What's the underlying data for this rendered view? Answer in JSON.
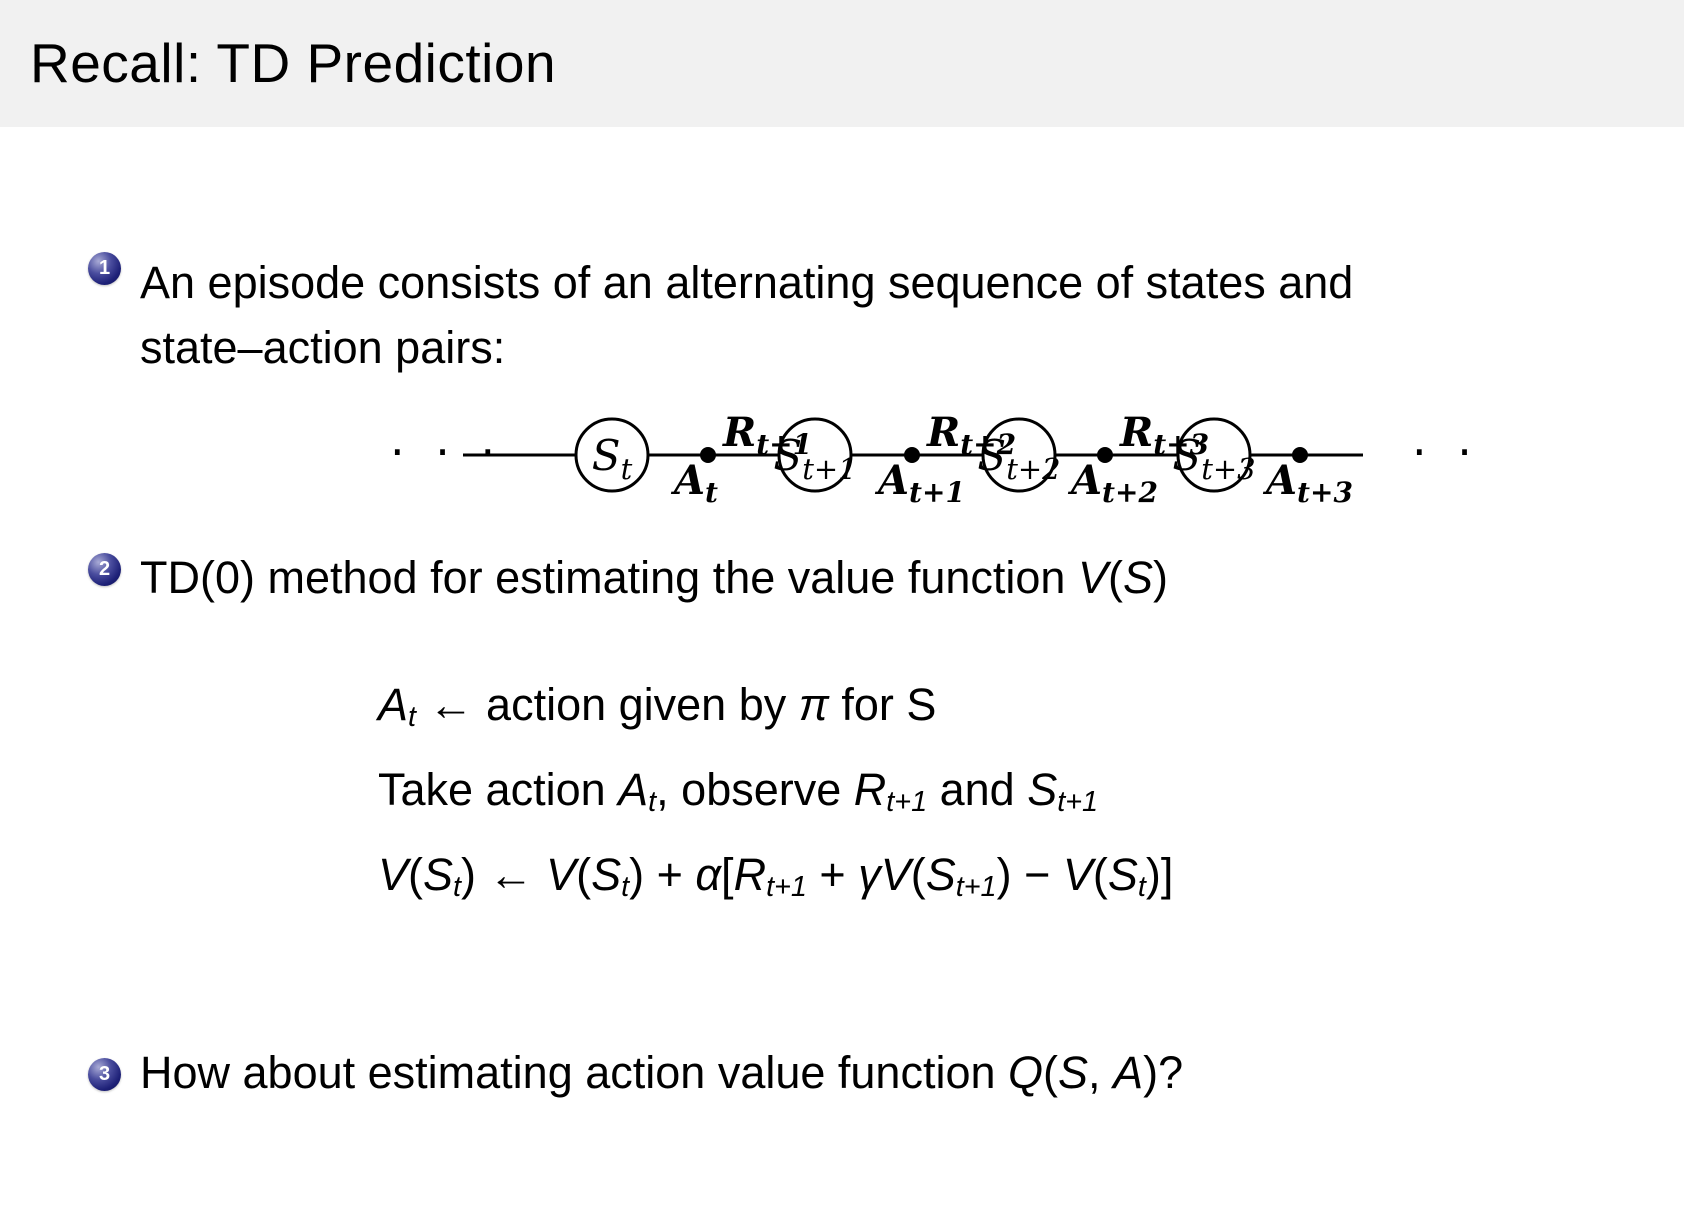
{
  "slide": {
    "title": "Recall: TD Prediction"
  },
  "items": [
    {
      "number": "1",
      "lines": [
        [
          {
            "t": "An episode consists of an alternating sequence of states and"
          }
        ],
        [
          {
            "t": "state–action pairs:"
          }
        ]
      ]
    },
    {
      "number": "2",
      "lines": [
        [
          {
            "t": "TD(0) method for estimating the value function "
          },
          {
            "t": "V",
            "i": 1
          },
          {
            "t": "("
          },
          {
            "t": "S",
            "i": 1
          },
          {
            "t": ")"
          }
        ]
      ]
    },
    {
      "number": "3",
      "lines": [
        [
          {
            "t": "How about estimating action value function "
          },
          {
            "t": "Q",
            "i": 1
          },
          {
            "t": "("
          },
          {
            "t": "S",
            "i": 1
          },
          {
            "t": ", "
          },
          {
            "t": "A",
            "i": 1
          },
          {
            "t": ")?"
          }
        ]
      ]
    }
  ],
  "algorithm": {
    "lines": [
      [
        {
          "t": "A",
          "i": 1
        },
        {
          "t": "t",
          "i": 1,
          "sub": 1
        },
        {
          "t": " ← action given by "
        },
        {
          "t": "π",
          "i": 1
        },
        {
          "t": " for S"
        }
      ],
      [
        {
          "t": "Take action "
        },
        {
          "t": "A",
          "i": 1
        },
        {
          "t": "t",
          "i": 1,
          "sub": 1
        },
        {
          "t": ", observe "
        },
        {
          "t": "R",
          "i": 1
        },
        {
          "t": "t+1",
          "i": 1,
          "sub": 1
        },
        {
          "t": " and "
        },
        {
          "t": "S",
          "i": 1
        },
        {
          "t": "t+1",
          "i": 1,
          "sub": 1
        }
      ],
      [
        {
          "t": "V",
          "i": 1
        },
        {
          "t": "("
        },
        {
          "t": "S",
          "i": 1
        },
        {
          "t": "t",
          "i": 1,
          "sub": 1
        },
        {
          "t": ") ← "
        },
        {
          "t": "V",
          "i": 1
        },
        {
          "t": "("
        },
        {
          "t": "S",
          "i": 1
        },
        {
          "t": "t",
          "i": 1,
          "sub": 1
        },
        {
          "t": ") + "
        },
        {
          "t": "α",
          "i": 1
        },
        {
          "t": "["
        },
        {
          "t": "R",
          "i": 1
        },
        {
          "t": "t+1",
          "i": 1,
          "sub": 1
        },
        {
          "t": " + "
        },
        {
          "t": "γ",
          "i": 1
        },
        {
          "t": "V",
          "i": 1
        },
        {
          "t": "("
        },
        {
          "t": "S",
          "i": 1
        },
        {
          "t": "t+1",
          "i": 1,
          "sub": 1
        },
        {
          "t": ") − "
        },
        {
          "t": "V",
          "i": 1
        },
        {
          "t": "("
        },
        {
          "t": "S",
          "i": 1
        },
        {
          "t": "t",
          "i": 1,
          "sub": 1
        },
        {
          "t": ")]"
        }
      ]
    ]
  },
  "diagram": {
    "ellipsis": "· · ·",
    "states": [
      {
        "base": "S",
        "sub": "t"
      },
      {
        "base": "S",
        "sub": "t+1"
      },
      {
        "base": "S",
        "sub": "t+2"
      },
      {
        "base": "S",
        "sub": "t+3"
      }
    ],
    "actions": [
      {
        "base": "A",
        "sub": "t"
      },
      {
        "base": "A",
        "sub": "t+1"
      },
      {
        "base": "A",
        "sub": "t+2"
      },
      {
        "base": "A",
        "sub": "t+3"
      }
    ],
    "rewards": [
      {
        "base": "R",
        "sub": "t+1"
      },
      {
        "base": "R",
        "sub": "t+2"
      },
      {
        "base": "R",
        "sub": "t+3"
      }
    ]
  }
}
